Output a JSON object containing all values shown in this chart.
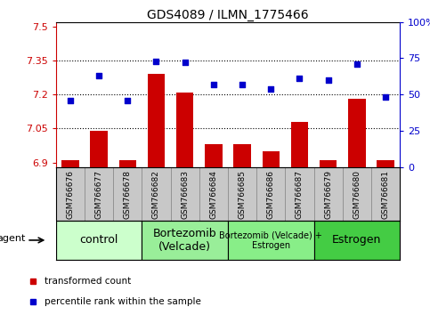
{
  "title": "GDS4089 / ILMN_1775466",
  "samples": [
    "GSM766676",
    "GSM766677",
    "GSM766678",
    "GSM766682",
    "GSM766683",
    "GSM766684",
    "GSM766685",
    "GSM766686",
    "GSM766687",
    "GSM766679",
    "GSM766680",
    "GSM766681"
  ],
  "transformed_count": [
    6.91,
    7.04,
    6.91,
    7.29,
    7.21,
    6.98,
    6.98,
    6.95,
    7.08,
    6.91,
    7.18,
    6.91
  ],
  "percentile_rank": [
    46,
    63,
    46,
    73,
    72,
    57,
    57,
    54,
    61,
    60,
    71,
    48
  ],
  "bar_color": "#cc0000",
  "dot_color": "#0000cc",
  "ylim_left": [
    6.88,
    7.52
  ],
  "ylim_right": [
    0,
    100
  ],
  "yticks_left": [
    6.9,
    7.05,
    7.2,
    7.35,
    7.5
  ],
  "yticks_right": [
    0,
    25,
    50,
    75,
    100
  ],
  "ytick_labels_left": [
    "6.9",
    "7.05",
    "7.2",
    "7.35",
    "7.5"
  ],
  "ytick_labels_right": [
    "0",
    "25",
    "50",
    "75",
    "100%"
  ],
  "hlines": [
    7.05,
    7.2,
    7.35
  ],
  "groups": [
    {
      "label": "control",
      "start": 0,
      "end": 3,
      "color": "#ccffcc",
      "fontsize": 9
    },
    {
      "label": "Bortezomib\n(Velcade)",
      "start": 3,
      "end": 6,
      "color": "#99ee99",
      "fontsize": 9
    },
    {
      "label": "Bortezomib (Velcade) +\nEstrogen",
      "start": 6,
      "end": 9,
      "color": "#88ee88",
      "fontsize": 7
    },
    {
      "label": "Estrogen",
      "start": 9,
      "end": 12,
      "color": "#44cc44",
      "fontsize": 9
    }
  ],
  "legend_items": [
    {
      "label": "transformed count",
      "color": "#cc0000"
    },
    {
      "label": "percentile rank within the sample",
      "color": "#0000cc"
    }
  ],
  "agent_label": "agent",
  "background_color": "#ffffff",
  "sample_cell_color": "#c8c8c8",
  "sample_cell_border": "#888888"
}
